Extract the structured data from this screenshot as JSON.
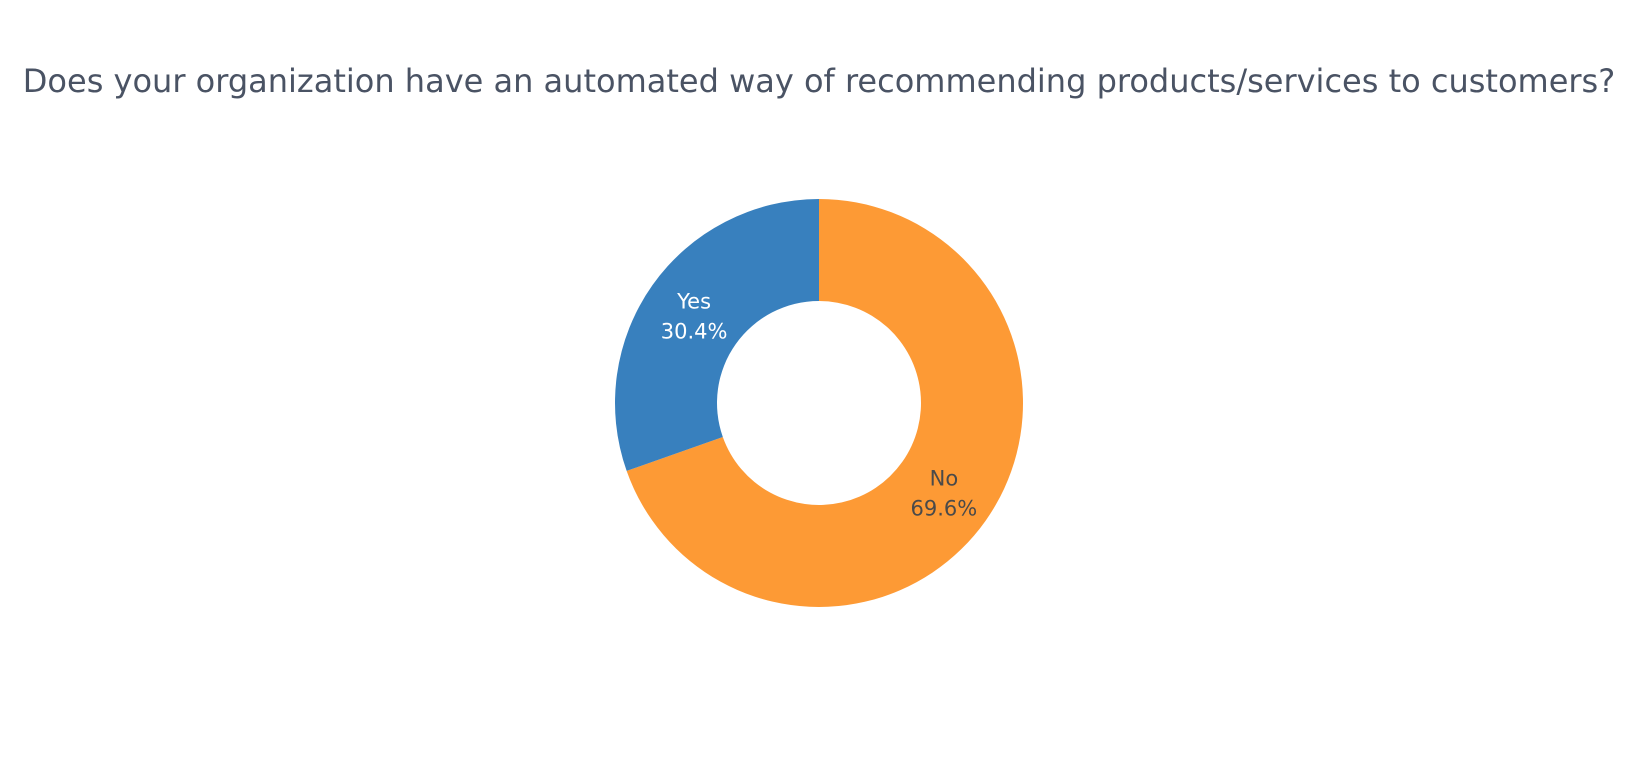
{
  "chart_data": {
    "type": "pie",
    "title": "Does your organization have an automated way of recommending products/services to customers?",
    "hole": 0.5,
    "direction": "clockwise",
    "rotation_start": "top",
    "slices": [
      {
        "label": "No",
        "percent_text": "69.6%",
        "value": 69.6,
        "color": "#fd9a35",
        "text_color": "#4a4a4a"
      },
      {
        "label": "Yes",
        "percent_text": "30.4%",
        "value": 30.4,
        "color": "#3880be",
        "text_color": "#ffffff"
      }
    ]
  }
}
